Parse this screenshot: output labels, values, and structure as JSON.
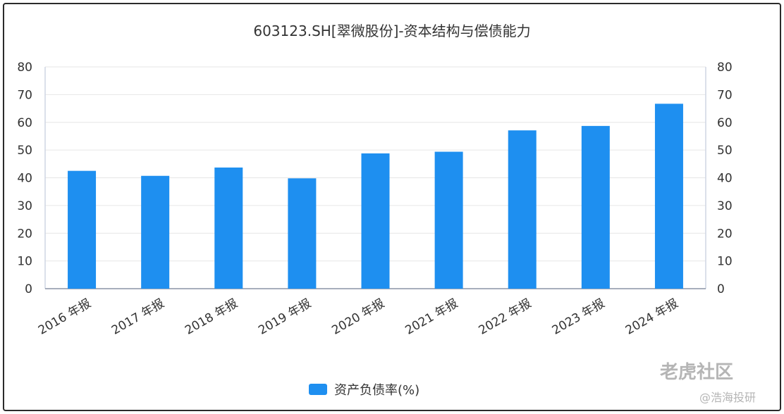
{
  "chart_data": {
    "type": "bar",
    "title": "603123.SH[翠微股份]-资本结构与偿债能力",
    "categories": [
      "2016 年报",
      "2017 年报",
      "2018 年报",
      "2019 年报",
      "2020 年报",
      "2021 年报",
      "2022 年报",
      "2023 年报",
      "2024 年报"
    ],
    "series": [
      {
        "name": "资产负债率(%)",
        "values": [
          42.5,
          40.7,
          43.7,
          39.8,
          48.8,
          49.4,
          57.1,
          58.7,
          66.7
        ]
      }
    ],
    "ylim": [
      0,
      80
    ],
    "yticks": [
      0,
      10,
      20,
      30,
      40,
      50,
      60,
      70,
      80
    ],
    "y_right_axis": true,
    "grid": true,
    "legend_position": "bottom-center",
    "colors": {
      "bar": "#1e8ff0",
      "grid": "#e6e6e6",
      "axis": "#cfd6e4"
    }
  },
  "watermark": {
    "top": "老虎社区",
    "bottom": "@浩海投研"
  }
}
